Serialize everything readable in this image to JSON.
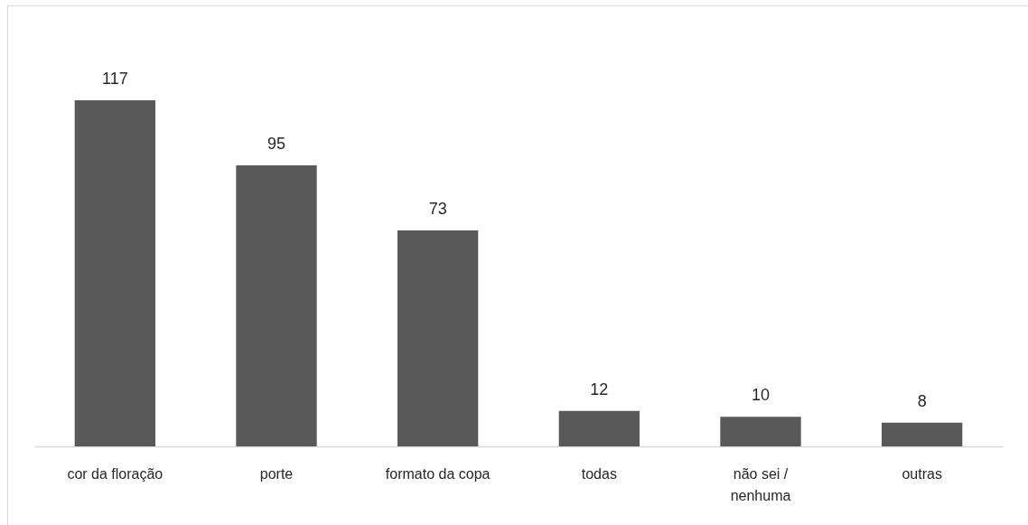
{
  "chart_data": {
    "type": "bar",
    "categories": [
      "cor da floração",
      "porte",
      "formato da copa",
      "todas",
      "não sei / nenhuma",
      "outras"
    ],
    "values": [
      117,
      95,
      73,
      12,
      10,
      8
    ],
    "color": "#595959",
    "data_labels": true
  }
}
